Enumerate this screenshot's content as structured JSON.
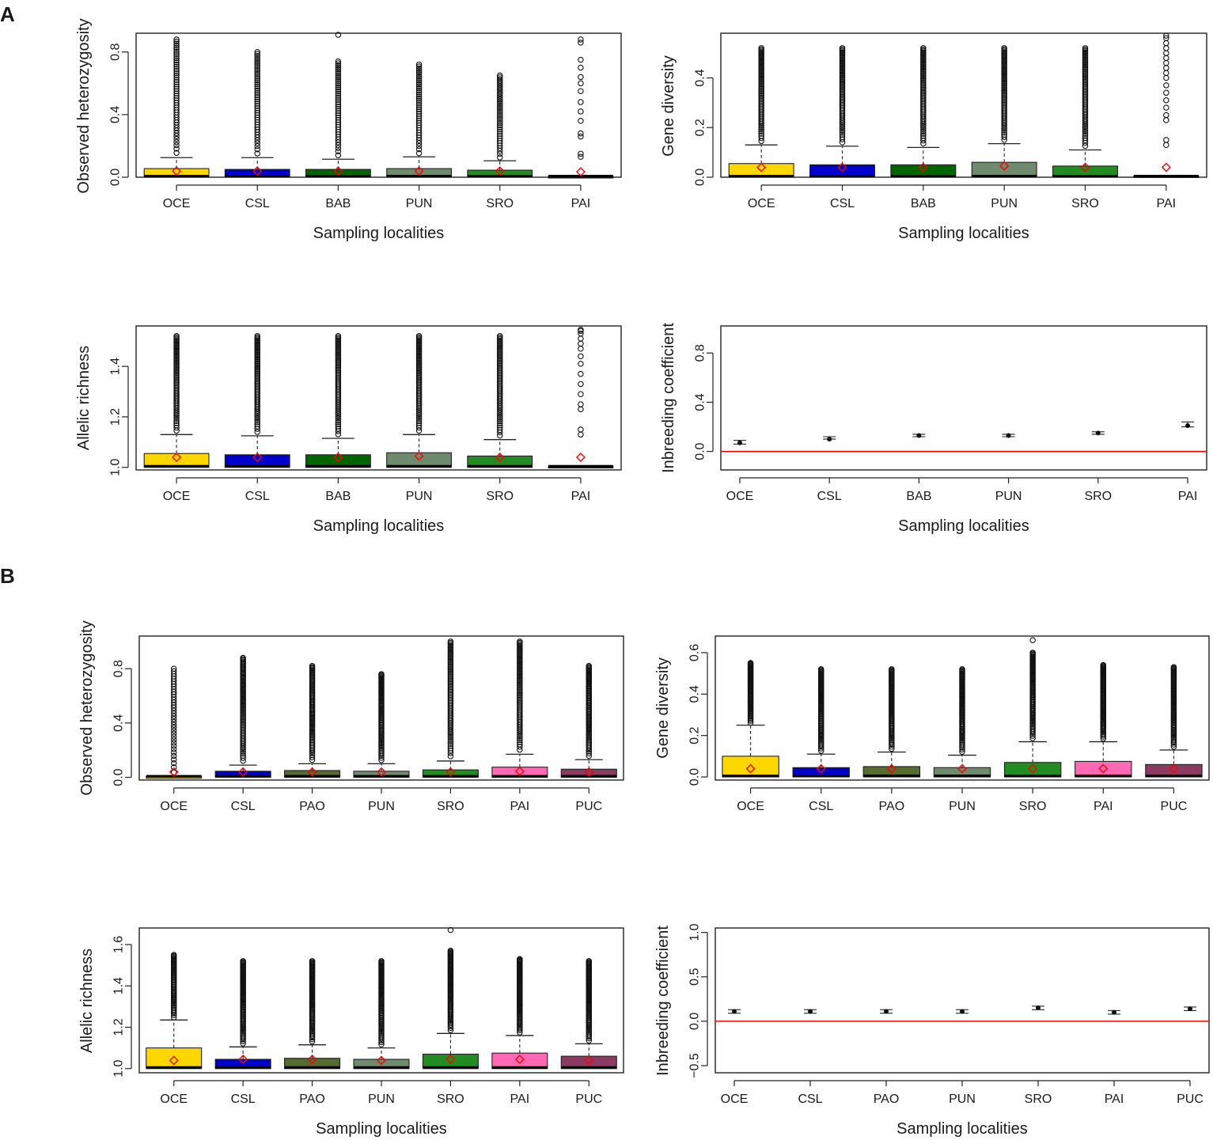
{
  "figure": {
    "panel_labels": {
      "a": "A",
      "b": "B"
    },
    "colors": {
      "OCE": "#FFD700",
      "CSL": "#0000CD",
      "BAB": "#006400",
      "PUN": "#6E8B6E",
      "SRO": "#228B22",
      "PAI_A": "#000000",
      "PAO": "#556B2F",
      "PAI": "#FF69B4",
      "PUC": "#8B3A62",
      "mean_marker": "#FF0000",
      "zero_line": "#FF0000"
    }
  },
  "chart_data": [
    {
      "id": "A1",
      "type": "boxplot",
      "title": "",
      "xlabel": "Sampling localities",
      "ylabel": "Observed heterozygosity",
      "categories": [
        "OCE",
        "CSL",
        "BAB",
        "PUN",
        "SRO",
        "PAI"
      ],
      "ylim": [
        0,
        0.92
      ],
      "yticks": [
        0.0,
        0.4,
        0.8
      ],
      "ytick_labels": [
        "0.0",
        "0.4",
        "0.8"
      ],
      "boxes": [
        {
          "q1": 0,
          "median": 0,
          "q3": 0.055,
          "whisker": 0.125,
          "mean": 0.04,
          "outlier_max": 0.88,
          "n_out": 48
        },
        {
          "q1": 0,
          "median": 0,
          "q3": 0.05,
          "whisker": 0.125,
          "mean": 0.04,
          "outlier_max": 0.8,
          "n_out": 45
        },
        {
          "q1": 0,
          "median": 0,
          "q3": 0.05,
          "whisker": 0.115,
          "mean": 0.04,
          "outlier_max": 0.74,
          "n_out": 42,
          "extra_outliers": [
            0.91
          ]
        },
        {
          "q1": 0,
          "median": 0,
          "q3": 0.055,
          "whisker": 0.13,
          "mean": 0.04,
          "outlier_max": 0.72,
          "n_out": 40
        },
        {
          "q1": 0,
          "median": 0,
          "q3": 0.045,
          "whisker": 0.105,
          "mean": 0.04,
          "outlier_max": 0.65,
          "n_out": 40
        },
        {
          "q1": 0,
          "median": 0,
          "q3": 0.005,
          "whisker": 0.005,
          "mean": 0.035,
          "outliers": [
            0.13,
            0.15,
            0.26,
            0.28,
            0.36,
            0.42,
            0.48,
            0.55,
            0.6,
            0.64,
            0.7,
            0.75,
            0.86,
            0.88
          ]
        }
      ]
    },
    {
      "id": "A2",
      "type": "boxplot",
      "title": "",
      "xlabel": "Sampling localities",
      "ylabel": "Gene diversity",
      "categories": [
        "OCE",
        "CSL",
        "BAB",
        "PUN",
        "SRO",
        "PAI"
      ],
      "ylim": [
        0,
        0.58
      ],
      "yticks": [
        0.0,
        0.2,
        0.4
      ],
      "ytick_labels": [
        "0.0",
        "0.2",
        "0.4"
      ],
      "boxes": [
        {
          "q1": 0,
          "median": 0,
          "q3": 0.055,
          "whisker": 0.13,
          "mean": 0.04,
          "outlier_max": 0.52,
          "n_out": 60
        },
        {
          "q1": 0,
          "median": 0,
          "q3": 0.05,
          "whisker": 0.125,
          "mean": 0.04,
          "outlier_max": 0.52,
          "n_out": 60
        },
        {
          "q1": 0,
          "median": 0,
          "q3": 0.05,
          "whisker": 0.12,
          "mean": 0.04,
          "outlier_max": 0.52,
          "n_out": 60
        },
        {
          "q1": 0,
          "median": 0,
          "q3": 0.06,
          "whisker": 0.135,
          "mean": 0.045,
          "outlier_max": 0.52,
          "n_out": 60
        },
        {
          "q1": 0,
          "median": 0,
          "q3": 0.045,
          "whisker": 0.11,
          "mean": 0.04,
          "outlier_max": 0.52,
          "n_out": 60
        },
        {
          "q1": 0,
          "median": 0,
          "q3": 0.005,
          "whisker": 0.005,
          "mean": 0.04,
          "outliers": [
            0.13,
            0.15,
            0.23,
            0.25,
            0.28,
            0.31,
            0.34,
            0.37,
            0.4,
            0.42,
            0.44,
            0.46,
            0.48,
            0.5,
            0.52,
            0.54,
            0.56,
            0.57
          ]
        }
      ]
    },
    {
      "id": "A3",
      "type": "boxplot",
      "title": "",
      "xlabel": "Sampling localities",
      "ylabel": "Allelic richness",
      "categories": [
        "OCE",
        "CSL",
        "BAB",
        "PUN",
        "SRO",
        "PAI"
      ],
      "ylim": [
        0.99,
        1.56
      ],
      "yticks": [
        1.0,
        1.2,
        1.4
      ],
      "ytick_labels": [
        "1.0",
        "1.2",
        "1.4"
      ],
      "boxes": [
        {
          "q1": 1.0,
          "median": 1.0,
          "q3": 1.055,
          "whisker": 1.13,
          "mean": 1.04,
          "outlier_max": 1.52,
          "n_out": 60
        },
        {
          "q1": 1.0,
          "median": 1.0,
          "q3": 1.05,
          "whisker": 1.125,
          "mean": 1.04,
          "outlier_max": 1.52,
          "n_out": 60
        },
        {
          "q1": 1.0,
          "median": 1.0,
          "q3": 1.05,
          "whisker": 1.115,
          "mean": 1.04,
          "outlier_max": 1.52,
          "n_out": 60
        },
        {
          "q1": 1.0,
          "median": 1.0,
          "q3": 1.058,
          "whisker": 1.13,
          "mean": 1.045,
          "outlier_max": 1.52,
          "n_out": 60
        },
        {
          "q1": 1.0,
          "median": 1.0,
          "q3": 1.045,
          "whisker": 1.11,
          "mean": 1.04,
          "outlier_max": 1.52,
          "n_out": 60
        },
        {
          "q1": 1.0,
          "median": 1.0,
          "q3": 1.004,
          "whisker": 1.004,
          "mean": 1.04,
          "outliers": [
            1.13,
            1.15,
            1.23,
            1.25,
            1.29,
            1.33,
            1.37,
            1.41,
            1.44,
            1.47,
            1.49,
            1.51,
            1.53,
            1.54,
            1.545
          ]
        }
      ]
    },
    {
      "id": "A4",
      "type": "errorbar",
      "title": "",
      "xlabel": "Sampling localities",
      "ylabel": "Inbreeding coefficient",
      "categories": [
        "OCE",
        "CSL",
        "BAB",
        "PUN",
        "SRO",
        "PAI"
      ],
      "ylim": [
        -0.15,
        1.02
      ],
      "yticks": [
        0.0,
        0.4,
        0.8
      ],
      "ytick_labels": [
        "0.0",
        "0.4",
        "0.8"
      ],
      "points": [
        {
          "value": 0.07,
          "lo": 0.06,
          "hi": 0.09
        },
        {
          "value": 0.1,
          "lo": 0.1,
          "hi": 0.12
        },
        {
          "value": 0.13,
          "lo": 0.12,
          "hi": 0.14
        },
        {
          "value": 0.13,
          "lo": 0.12,
          "hi": 0.14
        },
        {
          "value": 0.15,
          "lo": 0.14,
          "hi": 0.16
        },
        {
          "value": 0.21,
          "lo": 0.2,
          "hi": 0.24
        }
      ],
      "reference_line": 0
    },
    {
      "id": "B1",
      "type": "boxplot",
      "title": "",
      "xlabel": "",
      "ylabel": "Observed heterozygosity",
      "categories": [
        "OCE",
        "CSL",
        "PAO",
        "PUN",
        "SRO",
        "PAI",
        "PUC"
      ],
      "ylim": [
        -0.02,
        1.04
      ],
      "yticks": [
        0.0,
        0.4,
        0.8
      ],
      "ytick_labels": [
        "0.0",
        "0.4",
        "0.8"
      ],
      "boxes": [
        {
          "q1": 0,
          "median": 0,
          "q3": 0.005,
          "whisker": 0.005,
          "mean": 0.04,
          "outlier_max": 0.8,
          "n_out": 36
        },
        {
          "q1": 0,
          "median": 0,
          "q3": 0.045,
          "whisker": 0.09,
          "mean": 0.04,
          "outlier_max": 0.88,
          "n_out": 70
        },
        {
          "q1": 0,
          "median": 0,
          "q3": 0.05,
          "whisker": 0.1,
          "mean": 0.04,
          "outlier_max": 0.82,
          "n_out": 70
        },
        {
          "q1": 0,
          "median": 0,
          "q3": 0.045,
          "whisker": 0.1,
          "mean": 0.04,
          "outlier_max": 0.76,
          "n_out": 70
        },
        {
          "q1": 0,
          "median": 0,
          "q3": 0.055,
          "whisker": 0.12,
          "mean": 0.04,
          "outlier_max": 1.0,
          "n_out": 70
        },
        {
          "q1": 0,
          "median": 0,
          "q3": 0.075,
          "whisker": 0.17,
          "mean": 0.045,
          "outlier_max": 1.0,
          "n_out": 70
        },
        {
          "q1": 0,
          "median": 0,
          "q3": 0.06,
          "whisker": 0.13,
          "mean": 0.04,
          "outlier_max": 0.82,
          "n_out": 70
        }
      ]
    },
    {
      "id": "B2",
      "type": "boxplot",
      "title": "",
      "xlabel": "",
      "ylabel": "Gene diversity",
      "categories": [
        "OCE",
        "CSL",
        "PAO",
        "PUN",
        "SRO",
        "PAI",
        "PUC"
      ],
      "ylim": [
        -0.015,
        0.68
      ],
      "yticks": [
        0.0,
        0.2,
        0.4,
        0.6
      ],
      "ytick_labels": [
        "0.0",
        "0.2",
        "0.4",
        "0.6"
      ],
      "boxes": [
        {
          "q1": 0,
          "median": 0,
          "q3": 0.1,
          "whisker": 0.25,
          "mean": 0.04,
          "outlier_max": 0.55,
          "n_out": 60
        },
        {
          "q1": 0,
          "median": 0,
          "q3": 0.045,
          "whisker": 0.11,
          "mean": 0.04,
          "outlier_max": 0.52,
          "n_out": 70
        },
        {
          "q1": 0,
          "median": 0,
          "q3": 0.05,
          "whisker": 0.12,
          "mean": 0.04,
          "outlier_max": 0.52,
          "n_out": 70
        },
        {
          "q1": 0,
          "median": 0,
          "q3": 0.045,
          "whisker": 0.105,
          "mean": 0.04,
          "outlier_max": 0.52,
          "n_out": 70
        },
        {
          "q1": 0,
          "median": 0,
          "q3": 0.07,
          "whisker": 0.17,
          "mean": 0.04,
          "outlier_max": 0.6,
          "n_out": 70,
          "extra_outliers": [
            0.66
          ]
        },
        {
          "q1": 0,
          "median": 0,
          "q3": 0.075,
          "whisker": 0.17,
          "mean": 0.04,
          "outlier_max": 0.54,
          "n_out": 70
        },
        {
          "q1": 0,
          "median": 0,
          "q3": 0.06,
          "whisker": 0.13,
          "mean": 0.04,
          "outlier_max": 0.53,
          "n_out": 70
        }
      ]
    },
    {
      "id": "B3",
      "type": "boxplot",
      "title": "",
      "xlabel": "Sampling localities",
      "ylabel": "Allelic richness",
      "categories": [
        "OCE",
        "CSL",
        "PAO",
        "PUN",
        "SRO",
        "PAI",
        "PUC"
      ],
      "ylim": [
        0.98,
        1.68
      ],
      "yticks": [
        1.0,
        1.2,
        1.4,
        1.6
      ],
      "ytick_labels": [
        "1.0",
        "1.2",
        "1.4",
        "1.6"
      ],
      "boxes": [
        {
          "q1": 1.0,
          "median": 1.0,
          "q3": 1.1,
          "whisker": 1.235,
          "mean": 1.04,
          "outlier_max": 1.55,
          "n_out": 50
        },
        {
          "q1": 1.0,
          "median": 1.0,
          "q3": 1.045,
          "whisker": 1.105,
          "mean": 1.045,
          "outlier_max": 1.52,
          "n_out": 70
        },
        {
          "q1": 1.0,
          "median": 1.0,
          "q3": 1.05,
          "whisker": 1.115,
          "mean": 1.045,
          "outlier_max": 1.52,
          "n_out": 70
        },
        {
          "q1": 1.0,
          "median": 1.0,
          "q3": 1.045,
          "whisker": 1.1,
          "mean": 1.04,
          "outlier_max": 1.52,
          "n_out": 70
        },
        {
          "q1": 1.0,
          "median": 1.0,
          "q3": 1.07,
          "whisker": 1.17,
          "mean": 1.045,
          "outlier_max": 1.57,
          "n_out": 70,
          "extra_outliers": [
            1.67
          ]
        },
        {
          "q1": 1.0,
          "median": 1.0,
          "q3": 1.075,
          "whisker": 1.16,
          "mean": 1.045,
          "outlier_max": 1.53,
          "n_out": 70
        },
        {
          "q1": 1.0,
          "median": 1.0,
          "q3": 1.06,
          "whisker": 1.12,
          "mean": 1.04,
          "outlier_max": 1.52,
          "n_out": 70
        }
      ]
    },
    {
      "id": "B4",
      "type": "errorbar",
      "title": "",
      "xlabel": "Sampling localities",
      "ylabel": "Inbreeding coefficient",
      "categories": [
        "OCE",
        "CSL",
        "PAO",
        "PUN",
        "SRO",
        "PAI",
        "PUC"
      ],
      "ylim": [
        -0.58,
        1.05
      ],
      "yticks": [
        -0.5,
        0.0,
        0.5,
        1.0
      ],
      "ytick_labels": [
        "−0.5",
        "0.0",
        "0.5",
        "1.0"
      ],
      "points": [
        {
          "value": 0.11,
          "lo": 0.09,
          "hi": 0.13
        },
        {
          "value": 0.11,
          "lo": 0.09,
          "hi": 0.13
        },
        {
          "value": 0.11,
          "lo": 0.09,
          "hi": 0.13
        },
        {
          "value": 0.11,
          "lo": 0.09,
          "hi": 0.13
        },
        {
          "value": 0.15,
          "lo": 0.13,
          "hi": 0.17
        },
        {
          "value": 0.1,
          "lo": 0.08,
          "hi": 0.12
        },
        {
          "value": 0.14,
          "lo": 0.12,
          "hi": 0.16
        }
      ],
      "reference_line": 0
    }
  ]
}
